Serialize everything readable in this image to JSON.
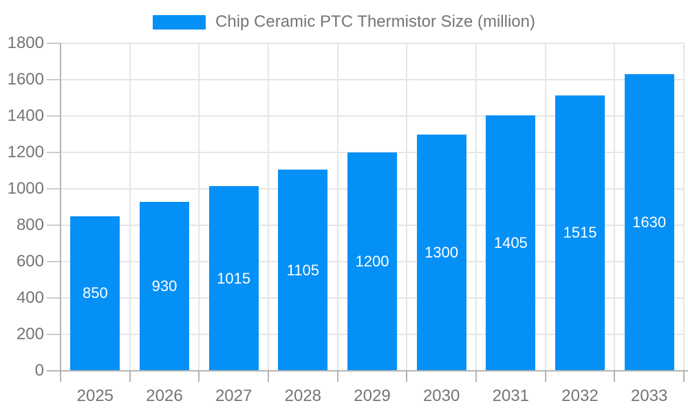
{
  "legend": {
    "items": [
      {
        "label": "Chip Ceramic PTC Thermistor Size (million)",
        "color": "#0590F6"
      }
    ],
    "position": "top"
  },
  "chart_data": {
    "type": "bar",
    "title": "",
    "categories": [
      "2025",
      "2026",
      "2027",
      "2028",
      "2029",
      "2030",
      "2031",
      "2032",
      "2033"
    ],
    "series": [
      {
        "name": "Chip Ceramic PTC Thermistor Size (million)",
        "values": [
          850,
          930,
          1015,
          1105,
          1200,
          1300,
          1405,
          1515,
          1630
        ],
        "color": "#0590F6"
      }
    ],
    "xlabel": "",
    "ylabel": "",
    "ylim": [
      0,
      1800
    ],
    "yticks": [
      0,
      200,
      400,
      600,
      800,
      1000,
      1200,
      1400,
      1600,
      1800
    ],
    "grid": true,
    "legend_position": "top",
    "value_labels_position": "inside-center",
    "value_label_color": "#ffffff"
  },
  "style": {
    "background": "#ffffff",
    "bar_color": "#0590F6",
    "axis_text_color": "#757575",
    "grid_color": "#e6e6e6",
    "axis_line_color": "#b3b3b3",
    "y_tick_color": "#cccccc"
  }
}
